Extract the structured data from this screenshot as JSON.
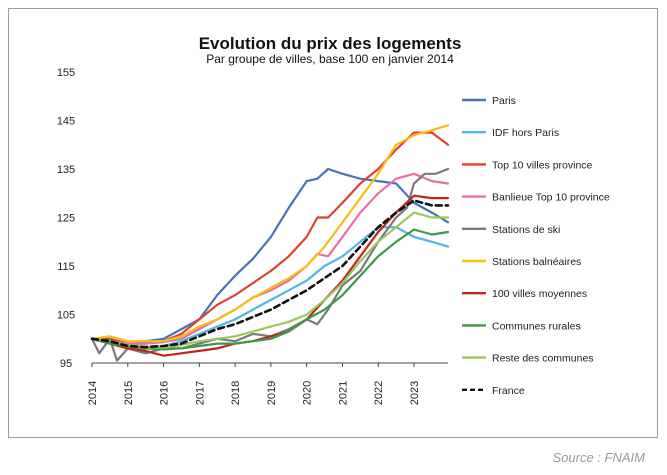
{
  "source": "Source : FNAIM",
  "chart_data": {
    "type": "line",
    "title": "Evolution du prix des logements",
    "subtitle": "Par groupe de villes, base 100 en janvier 2014",
    "xlabel": "",
    "ylabel": "",
    "xlim": [
      2014,
      2023.95
    ],
    "ylim": [
      95,
      155
    ],
    "yticks": [
      95,
      105,
      115,
      125,
      135,
      145,
      155
    ],
    "xticks": [
      2014,
      2015,
      2016,
      2017,
      2018,
      2019,
      2020,
      2021,
      2022,
      2023
    ],
    "legend_position": "right",
    "grid": false,
    "series": [
      {
        "name": "Paris",
        "color": "#4a72b8",
        "dash": false,
        "points": [
          [
            2014,
            100
          ],
          [
            2014.5,
            99.3
          ],
          [
            2015,
            98.8
          ],
          [
            2015.5,
            99.5
          ],
          [
            2016,
            100
          ],
          [
            2016.5,
            102
          ],
          [
            2017,
            104
          ],
          [
            2017.5,
            109
          ],
          [
            2018,
            113
          ],
          [
            2018.5,
            116.5
          ],
          [
            2019,
            121
          ],
          [
            2019.5,
            127
          ],
          [
            2020,
            132.5
          ],
          [
            2020.3,
            133
          ],
          [
            2020.6,
            135
          ],
          [
            2021,
            134
          ],
          [
            2021.5,
            133
          ],
          [
            2022,
            132.5
          ],
          [
            2022.5,
            132
          ],
          [
            2023,
            128
          ],
          [
            2023.5,
            126
          ],
          [
            2023.95,
            124
          ]
        ]
      },
      {
        "name": "IDF hors Paris",
        "color": "#4fb6e3",
        "dash": false,
        "points": [
          [
            2014,
            100
          ],
          [
            2014.5,
            99
          ],
          [
            2015,
            98
          ],
          [
            2015.5,
            98
          ],
          [
            2016,
            98.5
          ],
          [
            2016.5,
            99.5
          ],
          [
            2017,
            101
          ],
          [
            2017.5,
            102.5
          ],
          [
            2018,
            104
          ],
          [
            2018.5,
            106
          ],
          [
            2019,
            108
          ],
          [
            2019.5,
            110
          ],
          [
            2020,
            112
          ],
          [
            2020.5,
            115
          ],
          [
            2021,
            117
          ],
          [
            2021.5,
            120
          ],
          [
            2022,
            123
          ],
          [
            2022.5,
            123
          ],
          [
            2023,
            121
          ],
          [
            2023.5,
            120
          ],
          [
            2023.95,
            119
          ]
        ]
      },
      {
        "name": "Top 10 villes province",
        "color": "#e0412f",
        "dash": false,
        "points": [
          [
            2014,
            100
          ],
          [
            2014.5,
            100
          ],
          [
            2015,
            99
          ],
          [
            2015.5,
            99
          ],
          [
            2016,
            99.5
          ],
          [
            2016.5,
            101
          ],
          [
            2017,
            104
          ],
          [
            2017.5,
            107
          ],
          [
            2018,
            109
          ],
          [
            2018.5,
            111.5
          ],
          [
            2019,
            114
          ],
          [
            2019.5,
            117
          ],
          [
            2020,
            121
          ],
          [
            2020.3,
            125
          ],
          [
            2020.6,
            125
          ],
          [
            2021,
            128
          ],
          [
            2021.5,
            132
          ],
          [
            2022,
            135
          ],
          [
            2022.5,
            139
          ],
          [
            2023,
            142.5
          ],
          [
            2023.5,
            142.5
          ],
          [
            2023.95,
            140
          ]
        ]
      },
      {
        "name": "Banlieue Top 10 province",
        "color": "#e86fa5",
        "dash": false,
        "points": [
          [
            2014,
            100
          ],
          [
            2014.5,
            99.5
          ],
          [
            2015,
            99
          ],
          [
            2015.5,
            99
          ],
          [
            2016,
            99.3
          ],
          [
            2016.5,
            100
          ],
          [
            2017,
            102
          ],
          [
            2017.5,
            104
          ],
          [
            2018,
            106
          ],
          [
            2018.5,
            108.5
          ],
          [
            2019,
            110
          ],
          [
            2019.5,
            112
          ],
          [
            2020,
            115
          ],
          [
            2020.3,
            117.5
          ],
          [
            2020.6,
            117
          ],
          [
            2021,
            121
          ],
          [
            2021.5,
            126
          ],
          [
            2022,
            130
          ],
          [
            2022.5,
            133
          ],
          [
            2023,
            134
          ],
          [
            2023.5,
            132.5
          ],
          [
            2023.95,
            132
          ]
        ]
      },
      {
        "name": "Stations de ski",
        "color": "#7a7a7a",
        "dash": false,
        "points": [
          [
            2014,
            100
          ],
          [
            2014.2,
            97
          ],
          [
            2014.5,
            100
          ],
          [
            2014.7,
            95.5
          ],
          [
            2015,
            98
          ],
          [
            2015.5,
            97
          ],
          [
            2016,
            98
          ],
          [
            2016.5,
            98
          ],
          [
            2017,
            99
          ],
          [
            2017.5,
            100
          ],
          [
            2018,
            99.5
          ],
          [
            2018.5,
            101
          ],
          [
            2019,
            100.5
          ],
          [
            2019.5,
            102
          ],
          [
            2020,
            104
          ],
          [
            2020.3,
            103
          ],
          [
            2020.6,
            106
          ],
          [
            2021,
            111
          ],
          [
            2021.5,
            114
          ],
          [
            2022,
            120
          ],
          [
            2022.5,
            125
          ],
          [
            2022.8,
            127
          ],
          [
            2023,
            132
          ],
          [
            2023.3,
            134
          ],
          [
            2023.6,
            134
          ],
          [
            2023.95,
            135
          ]
        ]
      },
      {
        "name": "Stations balnéaires",
        "color": "#f5c014",
        "dash": false,
        "points": [
          [
            2014,
            100
          ],
          [
            2014.5,
            100.5
          ],
          [
            2015,
            99.5
          ],
          [
            2015.5,
            99.5
          ],
          [
            2016,
            99.5
          ],
          [
            2016.5,
            100.5
          ],
          [
            2017,
            102.5
          ],
          [
            2017.5,
            104
          ],
          [
            2018,
            106
          ],
          [
            2018.5,
            108.5
          ],
          [
            2019,
            110.5
          ],
          [
            2019.5,
            112.5
          ],
          [
            2020,
            115
          ],
          [
            2020.5,
            119
          ],
          [
            2021,
            124
          ],
          [
            2021.5,
            129
          ],
          [
            2022,
            134
          ],
          [
            2022.5,
            140
          ],
          [
            2023,
            142
          ],
          [
            2023.5,
            143
          ],
          [
            2023.95,
            144
          ]
        ]
      },
      {
        "name": "100 villes moyennes",
        "color": "#c0261d",
        "dash": false,
        "points": [
          [
            2014,
            100
          ],
          [
            2014.5,
            99
          ],
          [
            2015,
            98
          ],
          [
            2015.5,
            97.5
          ],
          [
            2016,
            96.5
          ],
          [
            2016.5,
            97
          ],
          [
            2017,
            97.5
          ],
          [
            2017.5,
            98
          ],
          [
            2018,
            99
          ],
          [
            2018.5,
            99.5
          ],
          [
            2019,
            100.5
          ],
          [
            2019.5,
            101.5
          ],
          [
            2020,
            104
          ],
          [
            2020.5,
            108
          ],
          [
            2021,
            112
          ],
          [
            2021.5,
            117
          ],
          [
            2022,
            122
          ],
          [
            2022.5,
            126
          ],
          [
            2023,
            129.5
          ],
          [
            2023.5,
            129
          ],
          [
            2023.95,
            129
          ]
        ]
      },
      {
        "name": "Communes rurales",
        "color": "#3a9a4a",
        "dash": false,
        "points": [
          [
            2014,
            100
          ],
          [
            2014.5,
            99
          ],
          [
            2015,
            98.5
          ],
          [
            2015.5,
            98
          ],
          [
            2016,
            97.8
          ],
          [
            2016.5,
            98
          ],
          [
            2017,
            98.5
          ],
          [
            2017.5,
            99
          ],
          [
            2018,
            99
          ],
          [
            2018.5,
            99.5
          ],
          [
            2019,
            100
          ],
          [
            2019.5,
            101.5
          ],
          [
            2020,
            104
          ],
          [
            2020.5,
            106
          ],
          [
            2021,
            109
          ],
          [
            2021.5,
            113
          ],
          [
            2022,
            117
          ],
          [
            2022.5,
            120
          ],
          [
            2023,
            122.5
          ],
          [
            2023.5,
            121.5
          ],
          [
            2023.95,
            122
          ]
        ]
      },
      {
        "name": "Reste des communes",
        "color": "#9bc857",
        "dash": false,
        "points": [
          [
            2014,
            100
          ],
          [
            2014.5,
            99.5
          ],
          [
            2015,
            98.7
          ],
          [
            2015.5,
            98.3
          ],
          [
            2016,
            98.2
          ],
          [
            2016.5,
            98.7
          ],
          [
            2017,
            99.5
          ],
          [
            2017.5,
            100
          ],
          [
            2018,
            100.5
          ],
          [
            2018.5,
            101.5
          ],
          [
            2019,
            102.5
          ],
          [
            2019.5,
            103.5
          ],
          [
            2020,
            105
          ],
          [
            2020.5,
            108
          ],
          [
            2021,
            111.5
          ],
          [
            2021.5,
            116
          ],
          [
            2022,
            120
          ],
          [
            2022.5,
            123
          ],
          [
            2023,
            126
          ],
          [
            2023.5,
            125
          ],
          [
            2023.95,
            125
          ]
        ]
      },
      {
        "name": "France",
        "color": "#111111",
        "dash": true,
        "points": [
          [
            2014,
            100
          ],
          [
            2014.5,
            99.5
          ],
          [
            2015,
            98.5
          ],
          [
            2015.5,
            98.3
          ],
          [
            2016,
            98.5
          ],
          [
            2016.5,
            99
          ],
          [
            2017,
            100.5
          ],
          [
            2017.5,
            102
          ],
          [
            2018,
            103
          ],
          [
            2018.5,
            104.5
          ],
          [
            2019,
            106
          ],
          [
            2019.5,
            108
          ],
          [
            2020,
            110
          ],
          [
            2020.5,
            112.5
          ],
          [
            2021,
            115
          ],
          [
            2021.5,
            119
          ],
          [
            2022,
            123
          ],
          [
            2022.5,
            126
          ],
          [
            2023,
            128.5
          ],
          [
            2023.5,
            127.5
          ],
          [
            2023.95,
            127.5
          ]
        ]
      }
    ]
  }
}
